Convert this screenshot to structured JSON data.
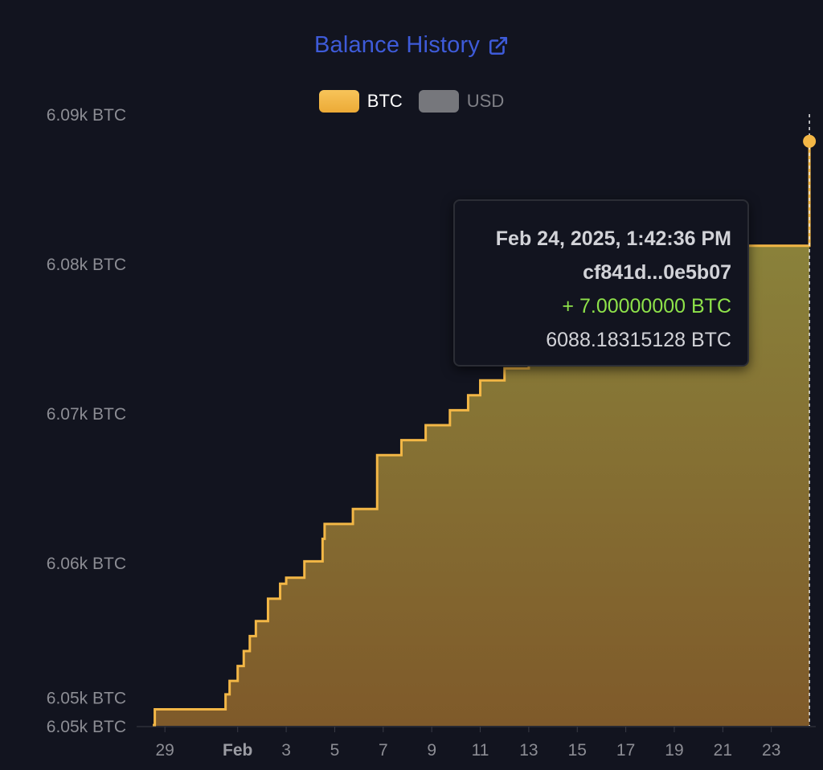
{
  "header": {
    "title": "Balance History",
    "external_icon": "external-link-icon",
    "accent_color": "#3e5bd9"
  },
  "legend": [
    {
      "label": "BTC",
      "color": "#f3b746",
      "active": true
    },
    {
      "label": "USD",
      "color": "#76777c",
      "active": false
    }
  ],
  "tooltip": {
    "date": "Feb 24, 2025, 1:42:36 PM",
    "tx_hash": "cf841d...0e5b07",
    "change": "+ 7.00000000 BTC",
    "balance": "6088.18315128 BTC",
    "change_color": "#8ee24a"
  },
  "chart_data": {
    "type": "area",
    "series": [
      {
        "name": "BTC",
        "color": "#f3b746",
        "points": [
          [
            "2025-01-28T12:00",
            6049.15
          ],
          [
            "2025-01-28T14:00",
            6050.2
          ],
          [
            "2025-01-31T12:00",
            6051.2
          ],
          [
            "2025-01-31T16:00",
            6052.1
          ],
          [
            "2025-02-01T00:00",
            6053.1
          ],
          [
            "2025-02-01T06:00",
            6054.1
          ],
          [
            "2025-02-01T12:00",
            6055.1
          ],
          [
            "2025-02-01T18:00",
            6056.1
          ],
          [
            "2025-02-02T06:00",
            6057.6
          ],
          [
            "2025-02-02T18:00",
            6058.6
          ],
          [
            "2025-02-03T00:00",
            6059.0
          ],
          [
            "2025-02-03T18:00",
            6060.1
          ],
          [
            "2025-02-04T12:00",
            6061.6
          ],
          [
            "2025-02-04T14:00",
            6062.6
          ],
          [
            "2025-02-05T18:00",
            6063.6
          ],
          [
            "2025-02-06T18:00",
            6067.2
          ],
          [
            "2025-02-07T18:00",
            6068.2
          ],
          [
            "2025-02-08T18:00",
            6069.2
          ],
          [
            "2025-02-09T18:00",
            6070.2
          ],
          [
            "2025-02-10T12:00",
            6071.2
          ],
          [
            "2025-02-11T00:00",
            6072.2
          ],
          [
            "2025-02-12T00:00",
            6073.0
          ],
          [
            "2025-02-13T00:00",
            6074.2
          ],
          [
            "2025-02-14T00:00",
            6075.2
          ],
          [
            "2025-02-15T00:00",
            6076.2
          ],
          [
            "2025-02-16T00:00",
            6077.2
          ],
          [
            "2025-02-17T00:00",
            6078.2
          ],
          [
            "2025-02-18T00:00",
            6080.2
          ],
          [
            "2025-02-19T00:00",
            6081.2
          ],
          [
            "2025-02-24T13:42",
            6081.2
          ],
          [
            "2025-02-24T13:42",
            6088.18315128
          ]
        ]
      }
    ],
    "x_range": [
      "2025-01-28T00:00",
      "2025-02-24T16:00"
    ],
    "x_ticks": [
      {
        "date": "2025-01-29",
        "label": "29",
        "bold": false
      },
      {
        "date": "2025-02-01",
        "label": "Feb",
        "bold": true
      },
      {
        "date": "2025-02-03",
        "label": "3",
        "bold": false
      },
      {
        "date": "2025-02-05",
        "label": "5",
        "bold": false
      },
      {
        "date": "2025-02-07",
        "label": "7",
        "bold": false
      },
      {
        "date": "2025-02-09",
        "label": "9",
        "bold": false
      },
      {
        "date": "2025-02-11",
        "label": "11",
        "bold": false
      },
      {
        "date": "2025-02-13",
        "label": "13",
        "bold": false
      },
      {
        "date": "2025-02-15",
        "label": "15",
        "bold": false
      },
      {
        "date": "2025-02-17",
        "label": "17",
        "bold": false
      },
      {
        "date": "2025-02-19",
        "label": "19",
        "bold": false
      },
      {
        "date": "2025-02-21",
        "label": "21",
        "bold": false
      },
      {
        "date": "2025-02-23",
        "label": "23",
        "bold": false
      }
    ],
    "y_ticks": [
      {
        "value": 6049.1,
        "label": "6.05k BTC"
      },
      {
        "value": 6051.0,
        "label": "6.05k BTC"
      },
      {
        "value": 6060,
        "label": "6.06k BTC"
      },
      {
        "value": 6070,
        "label": "6.07k BTC"
      },
      {
        "value": 6080,
        "label": "6.08k BTC"
      },
      {
        "value": 6090,
        "label": "6.09k BTC"
      }
    ],
    "ylim": [
      6049.1,
      6090
    ],
    "grid": false,
    "legend_position": "top-center",
    "hover_point": {
      "date": "2025-02-24T13:42",
      "value": 6088.18315128
    }
  }
}
